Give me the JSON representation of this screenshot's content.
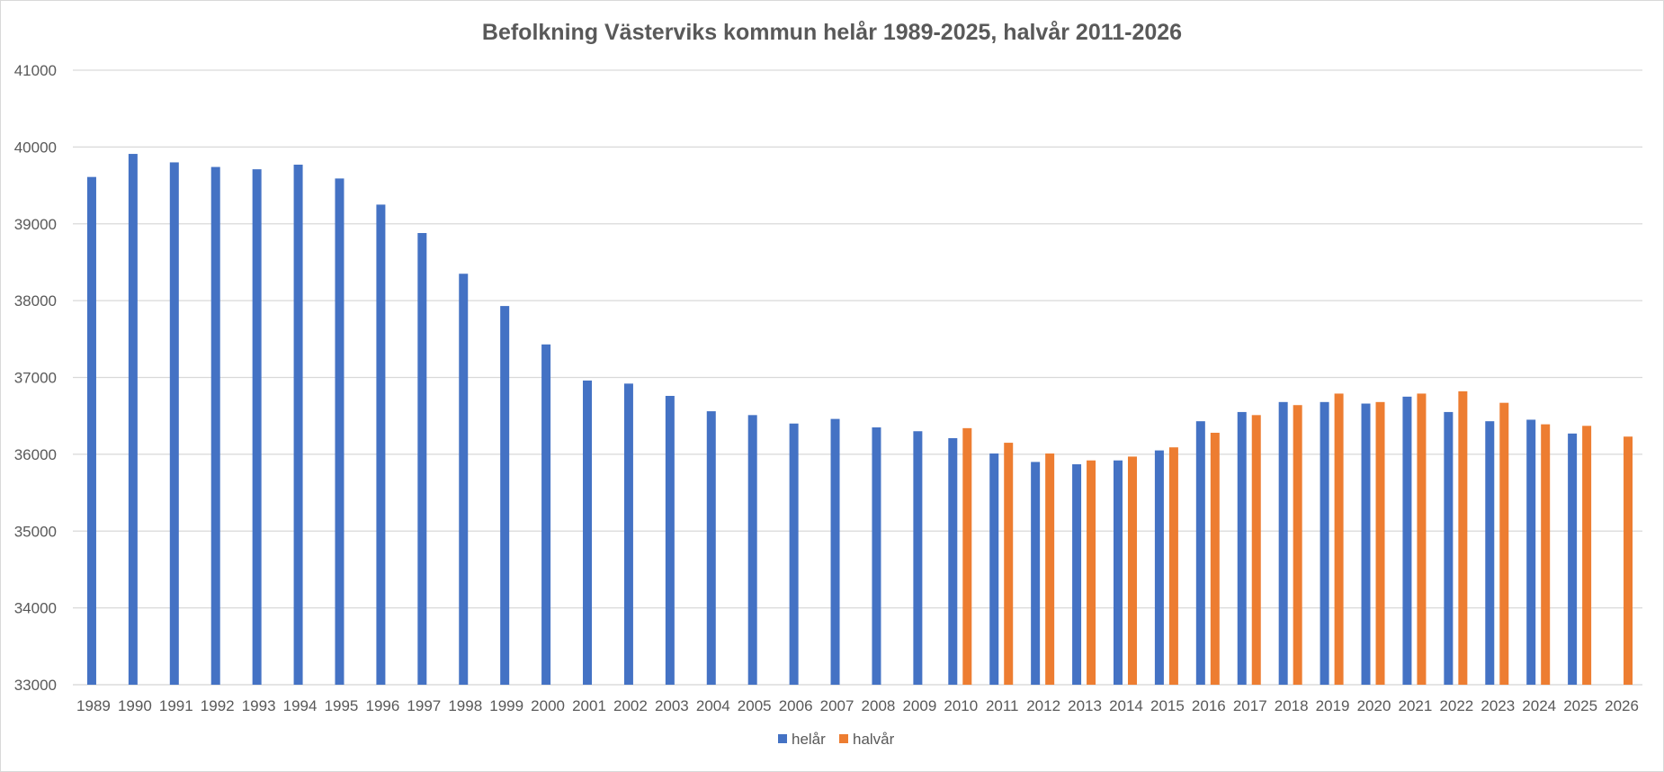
{
  "chart_data": {
    "type": "bar",
    "title": "Befolkning Västerviks kommun helår 1989-2025, halvår 2011-2026",
    "xlabel": "",
    "ylabel": "",
    "ylim": [
      33000,
      41000
    ],
    "yticks": [
      "33000",
      "34000",
      "35000",
      "36000",
      "37000",
      "38000",
      "39000",
      "40000",
      "41000"
    ],
    "grid": true,
    "legend_position": "bottom",
    "categories": [
      "1989",
      "1990",
      "1991",
      "1992",
      "1993",
      "1994",
      "1995",
      "1996",
      "1997",
      "1998",
      "1999",
      "2000",
      "2001",
      "2002",
      "2003",
      "2004",
      "2005",
      "2006",
      "2007",
      "2008",
      "2009",
      "2010",
      "2011",
      "2012",
      "2013",
      "2014",
      "2015",
      "2016",
      "2017",
      "2018",
      "2019",
      "2020",
      "2021",
      "2022",
      "2023",
      "2024",
      "2025",
      "2026"
    ],
    "series": [
      {
        "name": "helår",
        "color": "#4472c4",
        "values": [
          39610,
          39910,
          39800,
          39740,
          39710,
          39770,
          39590,
          39250,
          38880,
          38350,
          37930,
          37430,
          36960,
          36920,
          36760,
          36560,
          36510,
          36400,
          36460,
          36350,
          36300,
          36210,
          36010,
          35900,
          35870,
          35920,
          36050,
          36430,
          36550,
          36680,
          36680,
          36660,
          36750,
          36550,
          36430,
          36450,
          36270,
          null
        ]
      },
      {
        "name": "halvår",
        "color": "#ed7d31",
        "values": [
          null,
          null,
          null,
          null,
          null,
          null,
          null,
          null,
          null,
          null,
          null,
          null,
          null,
          null,
          null,
          null,
          null,
          null,
          null,
          null,
          null,
          36340,
          36150,
          36010,
          35920,
          35970,
          36090,
          36280,
          36510,
          36640,
          36790,
          36680,
          36790,
          36820,
          36670,
          36390,
          36370,
          36230
        ]
      }
    ]
  }
}
